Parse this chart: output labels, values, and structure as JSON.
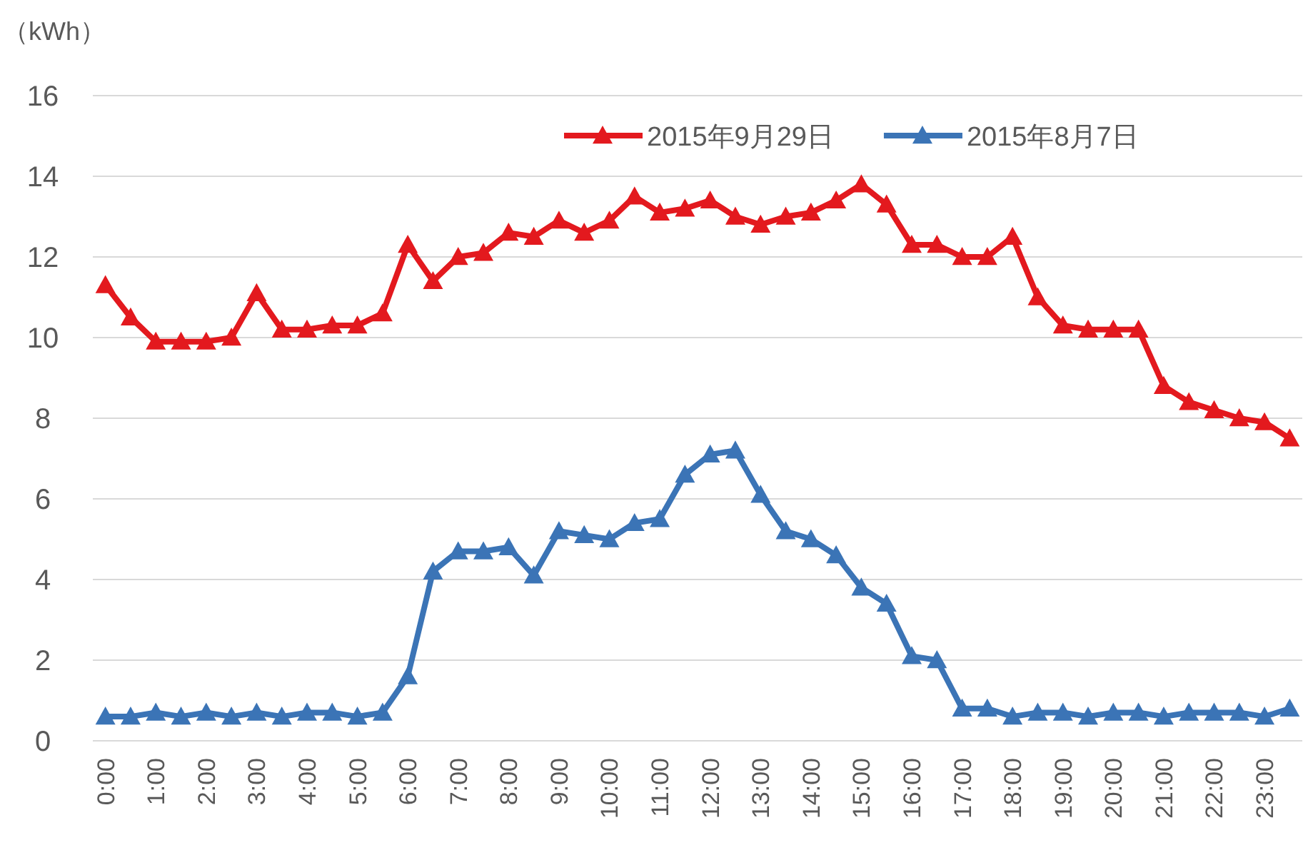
{
  "chart_data": {
    "type": "line",
    "ylabel": "（kWh）",
    "categories": [
      "0:00",
      null,
      "1:00",
      null,
      "2:00",
      null,
      "3:00",
      null,
      "4:00",
      null,
      "5:00",
      null,
      "6:00",
      null,
      "7:00",
      null,
      "8:00",
      null,
      "9:00",
      null,
      "10:00",
      null,
      "11:00",
      null,
      "12:00",
      null,
      "13:00",
      null,
      "14:00",
      null,
      "15:00",
      null,
      "16:00",
      null,
      "17:00",
      null,
      "18:00",
      null,
      "19:00",
      null,
      "20:00",
      null,
      "21:00",
      null,
      "22:00",
      null,
      "23:00",
      null
    ],
    "series": [
      {
        "name": "2015年9月29日",
        "color": "#e3191e",
        "values": [
          11.3,
          10.5,
          9.9,
          9.9,
          9.9,
          10.0,
          11.1,
          10.2,
          10.2,
          10.3,
          10.3,
          10.6,
          12.3,
          11.4,
          12.0,
          12.1,
          12.6,
          12.5,
          12.9,
          12.6,
          12.9,
          13.5,
          13.1,
          13.2,
          13.4,
          13.0,
          12.8,
          13.0,
          13.1,
          13.4,
          13.8,
          13.3,
          12.3,
          12.3,
          12.0,
          12.0,
          12.5,
          11.0,
          10.3,
          10.2,
          10.2,
          10.2,
          8.8,
          8.4,
          8.2,
          8.0,
          7.9,
          7.5
        ]
      },
      {
        "name": "2015年8月7日",
        "color": "#3b74b6",
        "values": [
          0.6,
          0.6,
          0.7,
          0.6,
          0.7,
          0.6,
          0.7,
          0.6,
          0.7,
          0.7,
          0.6,
          0.7,
          1.6,
          4.2,
          4.7,
          4.7,
          4.8,
          4.1,
          5.2,
          5.1,
          5.0,
          5.4,
          5.5,
          6.6,
          7.1,
          7.2,
          6.1,
          5.2,
          5.0,
          4.6,
          3.8,
          3.4,
          2.1,
          2.0,
          0.8,
          0.8,
          0.6,
          0.7,
          0.7,
          0.6,
          0.7,
          0.7,
          0.6,
          0.7,
          0.7,
          0.7,
          0.6,
          0.8
        ]
      }
    ],
    "ylim": [
      0,
      16
    ],
    "yticks": [
      0,
      2,
      4,
      6,
      8,
      10,
      12,
      14,
      16
    ],
    "grid": "y",
    "legend": "top right",
    "marker": "triangle",
    "line_style": "solid"
  }
}
